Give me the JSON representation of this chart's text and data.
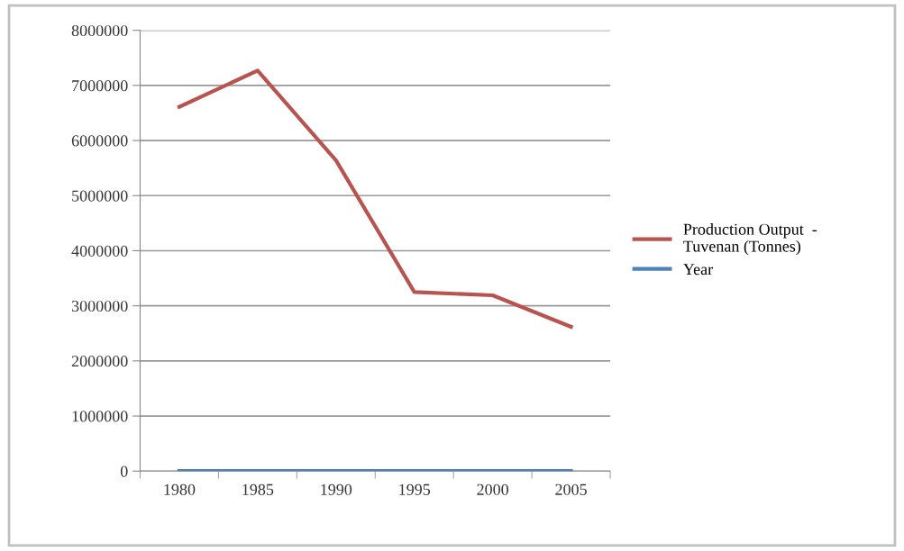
{
  "chart_data": {
    "type": "line",
    "categories": [
      "1980",
      "1985",
      "1990",
      "1995",
      "2000",
      "2005"
    ],
    "series": [
      {
        "name": "Production Output  -\nTuvenan (Tonnes)",
        "color": "#b85450",
        "values": [
          6610000,
          7270000,
          5640000,
          3250000,
          3190000,
          2620000
        ]
      },
      {
        "name": "Year",
        "color": "#4f81bd",
        "values": [
          1980,
          1985,
          1990,
          1995,
          2000,
          2005
        ]
      }
    ],
    "ylim": [
      0,
      8000000
    ],
    "yticks": [
      0,
      1000000,
      2000000,
      3000000,
      4000000,
      5000000,
      6000000,
      7000000,
      8000000
    ],
    "grid": "y",
    "legend": "right",
    "marker": "none",
    "line_style": "solid"
  }
}
